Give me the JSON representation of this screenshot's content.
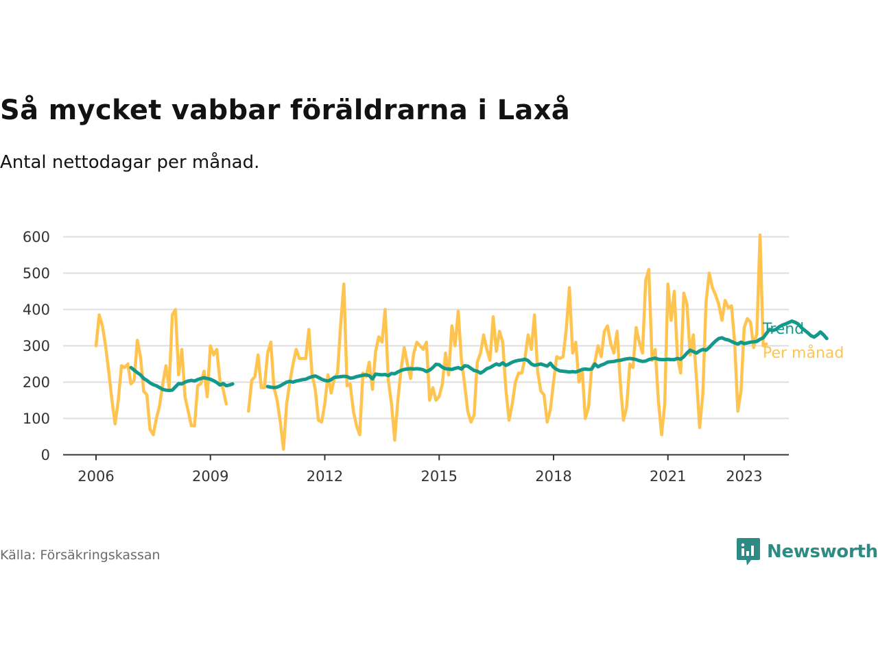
{
  "title": "Så mycket vabbar föräldrarna i Laxå",
  "subtitle": "Antal nettodagar per månad.",
  "source": "Källa: Försäkringskassan",
  "brand": {
    "name": "Newsworthy",
    "icon": "newsworthy-logo-icon",
    "color": "#2e8b84"
  },
  "colors": {
    "monthly": "#fec44f",
    "trend": "#13998c",
    "grid": "#dddddd",
    "axis": "#333333"
  },
  "chart_data": {
    "type": "line",
    "x_unit": "year (decimal, monthly points)",
    "ylim": [
      0,
      620
    ],
    "yticks": [
      0,
      100,
      200,
      300,
      400,
      500,
      600
    ],
    "xlim": [
      2005.1,
      2024.2
    ],
    "xticks": [
      2006,
      2009,
      2012,
      2015,
      2018,
      2021,
      2023
    ],
    "grid": "horizontal",
    "legend": "direct labels at line ends (right)",
    "series": [
      {
        "name": "Per månad",
        "color": "#fec44f",
        "segments": [
          {
            "start": 2006.0,
            "step": 0.08333,
            "values": [
              300,
              385,
              355,
              300,
              230,
              150,
              85,
              150,
              245,
              240,
              250,
              195,
              205,
              315,
              270,
              175,
              165,
              70,
              55,
              100,
              135,
              195,
              245,
              185,
              385,
              400,
              220,
              290,
              160,
              120,
              80,
              80,
              190,
              195,
              230,
              160,
              300,
              275,
              290,
              205,
              180,
              140
            ]
          },
          {
            "start": 2010.0,
            "step": 0.08333,
            "values": [
              120,
              205,
              215,
              275,
              185,
              185,
              280,
              310,
              185,
              150,
              90,
              15,
              140,
              200,
              250,
              290,
              265,
              265,
              265,
              345,
              220,
              180,
              95,
              90,
              140,
              220,
              170,
              210,
              225,
              360,
              470,
              190,
              195,
              120,
              80,
              55,
              225,
              215,
              255,
              180,
              285,
              325,
              310,
              400,
              205,
              140,
              40,
              150,
              235,
              295,
              250,
              210,
              280,
              310,
              300,
              290,
              310,
              150,
              185,
              150,
              160,
              195,
              280,
              220,
              355,
              300,
              395,
              260,
              195,
              120,
              90,
              110,
              255,
              280,
              330,
              290,
              260,
              380,
              285,
              340,
              310,
              180,
              95,
              140,
              200,
              225,
              225,
              265,
              330,
              290,
              385,
              230,
              175,
              165,
              90,
              125,
              200,
              270,
              265,
              270,
              345,
              460,
              280,
              310,
              200,
              235,
              100,
              130,
              240,
              255,
              300,
              270,
              340,
              355,
              305,
              280,
              340,
              200,
              95,
              130,
              250,
              240,
              350,
              310,
              280,
              480,
              510,
              260,
              290,
              150,
              55,
              140,
              470,
              370,
              450,
              270,
              225,
              445,
              415,
              275,
              330,
              210,
              75,
              170,
              420,
              500,
              460,
              440,
              415,
              370,
              425,
              405,
              410,
              310,
              120,
              175,
              350,
              375,
              365,
              295,
              335,
              605,
              300,
              305
            ]
          }
        ]
      },
      {
        "name": "Trend",
        "color": "#13998c",
        "segments": [
          {
            "start": 2006.9167,
            "step": 0.08333,
            "values": [
              240,
              233,
              226,
              220,
              210,
              205,
              198,
              193,
              190,
              185,
              180,
              178,
              177,
              178,
              187,
              196,
              195,
              200,
              203,
              205,
              203,
              207,
              210,
              212,
              210,
              208,
              204,
              199,
              192,
              196,
              190,
              192,
              195
            ]
          },
          {
            "start": 2010.5,
            "step": 0.08333,
            "values": [
              188,
              186,
              185,
              186,
              190,
              195,
              200,
              202,
              200,
              203,
              205,
              207,
              208,
              212,
              215,
              217,
              213,
              208,
              205,
              203,
              207,
              213,
              214,
              215,
              216,
              215,
              211,
              212,
              215,
              217,
              219,
              220,
              218,
              209,
              222,
              221,
              220,
              221,
              218,
              224,
              223,
              228,
              232,
              235,
              236,
              237,
              236,
              237,
              236,
              234,
              229,
              233,
              240,
              249,
              248,
              241,
              237,
              236,
              235,
              238,
              240,
              236,
              245,
              244,
              238,
              232,
              230,
              225,
              230,
              237,
              240,
              245,
              250,
              247,
              253,
              246,
              250,
              255,
              258,
              260,
              261,
              263,
              259,
              250,
              246,
              248,
              250,
              247,
              244,
              252,
              241,
              235,
              231,
              230,
              229,
              228,
              229,
              228,
              231,
              235,
              236,
              235,
              236,
              250,
              242,
              247,
              250,
              255,
              256,
              257,
              259,
              260,
              262,
              264,
              265,
              264,
              262,
              259,
              257,
              258,
              262,
              264,
              266,
              263,
              262,
              262,
              263,
              262,
              262,
              265,
              263,
              270,
              280,
              288,
              284,
              280,
              286,
              290,
              288,
              295,
              305,
              313,
              320,
              322,
              318,
              316,
              312,
              308,
              305,
              310,
              306,
              308,
              310,
              311,
              312,
              318,
              322,
              334,
              345,
              342,
              345,
              352,
              357,
              360,
              364,
              368,
              365,
              360,
              350,
              343,
              336,
              328,
              324,
              330,
              338,
              330,
              320
            ]
          }
        ]
      }
    ]
  }
}
